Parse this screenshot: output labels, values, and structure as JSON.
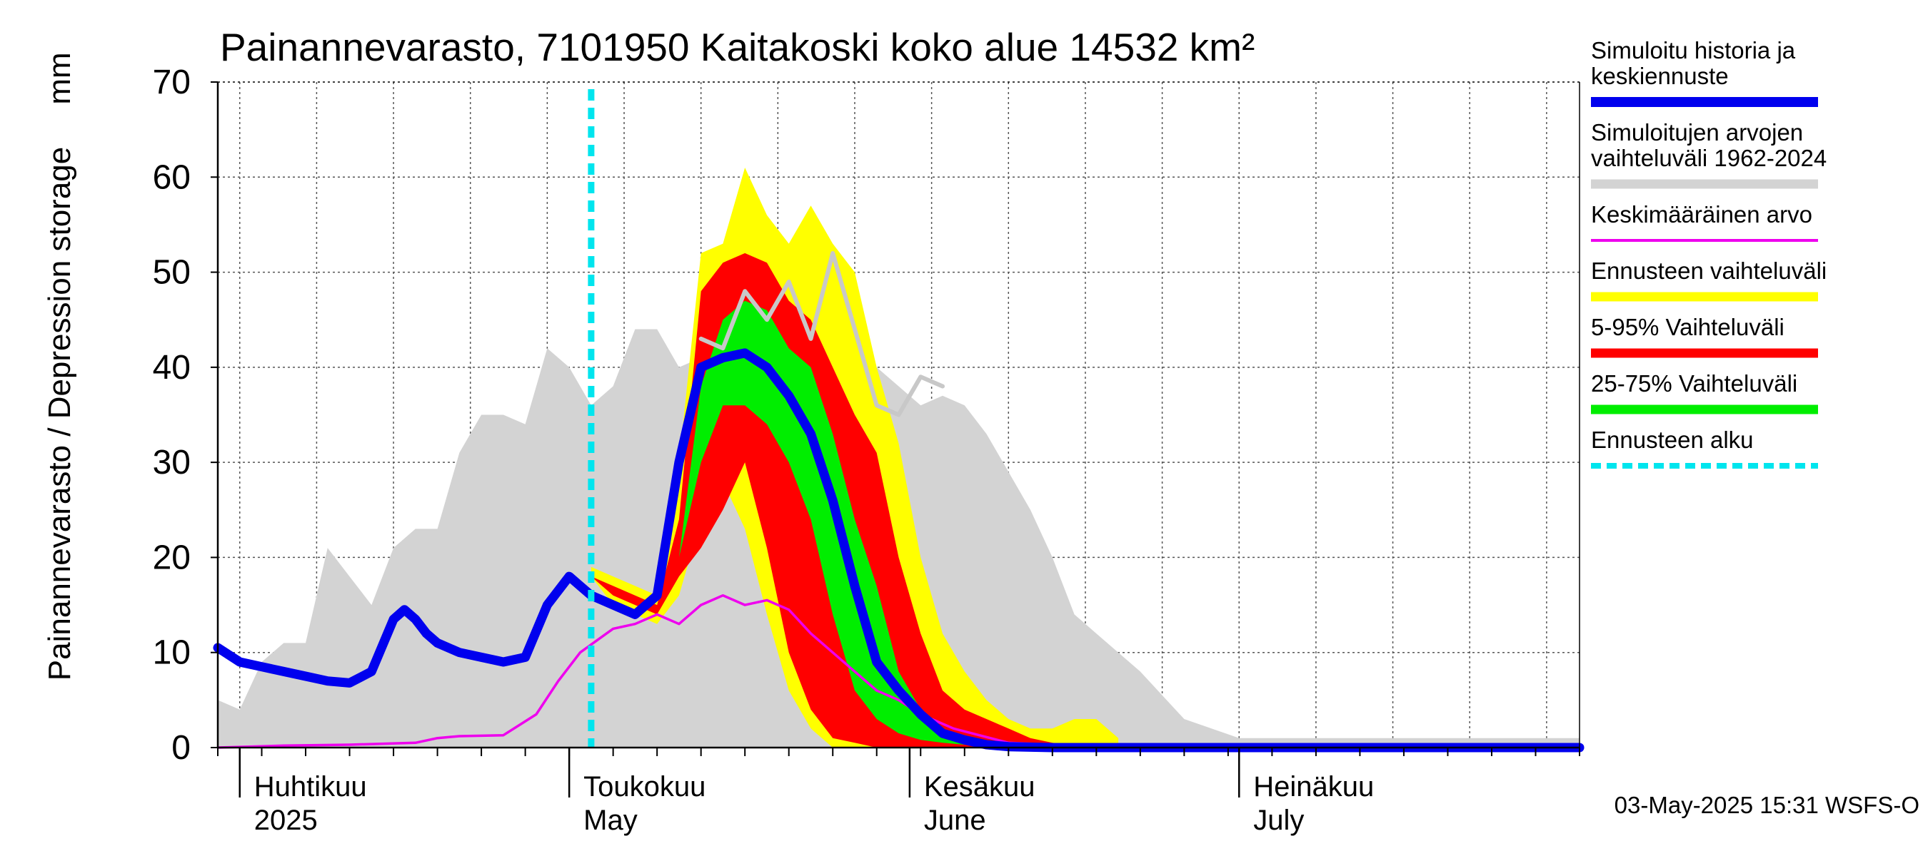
{
  "chart_data": {
    "type": "area",
    "title": "Painannevarasto, 7101950 Kaitakoski koko alue 14532 km²",
    "ylabel": "Painannevarasto / Depression storage",
    "yunit": "mm",
    "ylim": [
      0,
      70
    ],
    "yticks": [
      0,
      10,
      20,
      30,
      40,
      50,
      60,
      70
    ],
    "xlim": [
      "2025-03-30",
      "2025-08-01"
    ],
    "grid": true,
    "legend_position": "right",
    "month_labels": [
      {
        "date": "2025-04-01",
        "fi": "Huhtikuu",
        "en": "2025"
      },
      {
        "date": "2025-05-01",
        "fi": "Toukokuu",
        "en": "May"
      },
      {
        "date": "2025-06-01",
        "fi": "Kesäkuu",
        "en": "June"
      },
      {
        "date": "2025-07-01",
        "fi": "Heinäkuu",
        "en": "July"
      }
    ],
    "forecast_start": "2025-05-03",
    "footer": "03-May-2025 15:31 WSFS-O",
    "colors": {
      "history": "#0000ee",
      "range": "#d3d3d3",
      "mean": "#ee00ee",
      "forecast_range": "#ffff00",
      "p5_95": "#ff0000",
      "p25_75": "#00ee00",
      "forecast_start": "#00e5ee",
      "prev_forecast": "#c8c8c8"
    },
    "legend": [
      {
        "key": "history",
        "text": [
          "Simuloitu historia ja",
          "keskiennuste"
        ],
        "style": "thick"
      },
      {
        "key": "range",
        "text": [
          "Simuloitujen arvojen",
          "vaihteluväli 1962-2024"
        ],
        "style": "band"
      },
      {
        "key": "mean",
        "text": [
          "Keskimääräinen arvo"
        ],
        "style": "thin"
      },
      {
        "key": "forecast_range",
        "text": [
          "Ennusteen vaihteluväli"
        ],
        "style": "band"
      },
      {
        "key": "p5_95",
        "text": [
          "5-95% Vaihteluväli"
        ],
        "style": "band"
      },
      {
        "key": "p25_75",
        "text": [
          "25-75% Vaihteluväli"
        ],
        "style": "band"
      },
      {
        "key": "forecast_start",
        "text": [
          "Ennusteen alku"
        ],
        "style": "dashed"
      }
    ],
    "series": [
      {
        "key": "range",
        "kind": "band",
        "x": [
          "2025-03-30",
          "2025-04-01",
          "2025-04-03",
          "2025-04-05",
          "2025-04-07",
          "2025-04-09",
          "2025-04-11",
          "2025-04-13",
          "2025-04-15",
          "2025-04-17",
          "2025-04-19",
          "2025-04-21",
          "2025-04-23",
          "2025-04-25",
          "2025-04-27",
          "2025-04-29",
          "2025-05-01",
          "2025-05-03",
          "2025-05-05",
          "2025-05-07",
          "2025-05-09",
          "2025-05-11",
          "2025-05-13",
          "2025-05-15",
          "2025-05-17",
          "2025-05-19",
          "2025-05-21",
          "2025-05-23",
          "2025-05-25",
          "2025-05-27",
          "2025-05-29",
          "2025-05-31",
          "2025-06-02",
          "2025-06-04",
          "2025-06-06",
          "2025-06-08",
          "2025-06-10",
          "2025-06-12",
          "2025-06-14",
          "2025-06-16",
          "2025-06-18",
          "2025-06-22",
          "2025-06-26",
          "2025-07-01",
          "2025-08-01"
        ],
        "upper": [
          5,
          4,
          9,
          11,
          11,
          21,
          18,
          15,
          21,
          23,
          23,
          31,
          35,
          35,
          34,
          42,
          40,
          36,
          38,
          44,
          44,
          40,
          41,
          46,
          44,
          42,
          43,
          46,
          44,
          42,
          40,
          38,
          36,
          37,
          36,
          33,
          29,
          25,
          20,
          14,
          12,
          8,
          3,
          1,
          1
        ],
        "lower": [
          0,
          0,
          0,
          0,
          0,
          0,
          0,
          0,
          0,
          0,
          0,
          0,
          0,
          0,
          0,
          0,
          0,
          0,
          0,
          0,
          0,
          0,
          0,
          0,
          0,
          0,
          0,
          0,
          0,
          0,
          0,
          0,
          0,
          0,
          0,
          0,
          0,
          0,
          0,
          0,
          0,
          0,
          0,
          0,
          0
        ]
      },
      {
        "key": "forecast_range",
        "kind": "band",
        "x": [
          "2025-05-03",
          "2025-05-05",
          "2025-05-07",
          "2025-05-09",
          "2025-05-11",
          "2025-05-13",
          "2025-05-15",
          "2025-05-17",
          "2025-05-19",
          "2025-05-21",
          "2025-05-23",
          "2025-05-25",
          "2025-05-27",
          "2025-05-29",
          "2025-05-31",
          "2025-06-02",
          "2025-06-04",
          "2025-06-06",
          "2025-06-08",
          "2025-06-10",
          "2025-06-12",
          "2025-06-14",
          "2025-06-16",
          "2025-06-18",
          "2025-06-20"
        ],
        "upper": [
          19,
          18,
          17,
          16,
          30,
          52,
          53,
          61,
          56,
          53,
          57,
          53,
          50,
          40,
          32,
          20,
          12,
          8,
          5,
          3,
          2,
          2,
          3,
          3,
          1
        ],
        "lower": [
          18,
          15,
          14,
          13,
          16,
          24,
          28,
          23,
          14,
          6,
          2,
          0,
          0,
          0,
          0,
          0,
          0,
          0,
          0,
          0,
          0,
          0,
          0,
          0,
          0
        ]
      },
      {
        "key": "p5_95",
        "kind": "band",
        "x": [
          "2025-05-03",
          "2025-05-05",
          "2025-05-07",
          "2025-05-09",
          "2025-05-11",
          "2025-05-13",
          "2025-05-15",
          "2025-05-17",
          "2025-05-19",
          "2025-05-21",
          "2025-05-23",
          "2025-05-25",
          "2025-05-27",
          "2025-05-29",
          "2025-05-31",
          "2025-06-02",
          "2025-06-04",
          "2025-06-06",
          "2025-06-08",
          "2025-06-10",
          "2025-06-12",
          "2025-06-14",
          "2025-06-16",
          "2025-06-18"
        ],
        "upper": [
          18,
          17,
          16,
          15,
          24,
          48,
          51,
          52,
          51,
          47,
          45,
          40,
          35,
          31,
          20,
          12,
          6,
          4,
          3,
          2,
          1,
          0.5,
          0.2,
          0
        ],
        "lower": [
          18,
          16,
          15,
          14,
          18,
          21,
          25,
          30,
          21,
          10,
          4,
          1,
          0.5,
          0,
          0,
          0,
          0,
          0,
          0,
          0,
          0,
          0,
          0,
          0
        ]
      },
      {
        "key": "p25_75",
        "kind": "band",
        "x": [
          "2025-05-03",
          "2025-05-05",
          "2025-05-07",
          "2025-05-09",
          "2025-05-11",
          "2025-05-13",
          "2025-05-15",
          "2025-05-17",
          "2025-05-19",
          "2025-05-21",
          "2025-05-23",
          "2025-05-25",
          "2025-05-27",
          "2025-05-29",
          "2025-05-31",
          "2025-06-02",
          "2025-06-04",
          "2025-06-06",
          "2025-06-08",
          "2025-06-10",
          "2025-06-12",
          "2025-06-14",
          "2025-06-16",
          "2025-06-18"
        ],
        "upper": [
          18,
          16,
          15,
          14,
          20,
          38,
          45,
          47,
          46,
          42,
          40,
          33,
          24,
          17,
          8,
          4,
          2,
          1,
          0.5,
          0.2,
          0.1,
          0,
          0,
          0
        ],
        "lower": [
          18,
          16,
          15,
          14,
          20,
          30,
          36,
          36,
          34,
          30,
          24,
          14,
          6,
          3,
          1.5,
          0.8,
          0.5,
          0.3,
          0.2,
          0.1,
          0,
          0,
          0,
          0
        ]
      },
      {
        "key": "prev_forecast",
        "kind": "line",
        "x": [
          "2025-05-13",
          "2025-05-15",
          "2025-05-17",
          "2025-05-19",
          "2025-05-21",
          "2025-05-23",
          "2025-05-25",
          "2025-05-27",
          "2025-05-29",
          "2025-05-31",
          "2025-06-02",
          "2025-06-04"
        ],
        "y": [
          43,
          42,
          48,
          45,
          49,
          43,
          52,
          44,
          36,
          35,
          39,
          38
        ]
      },
      {
        "key": "mean",
        "kind": "line",
        "x": [
          "2025-03-30",
          "2025-04-05",
          "2025-04-11",
          "2025-04-17",
          "2025-04-19",
          "2025-04-21",
          "2025-04-25",
          "2025-04-28",
          "2025-04-30",
          "2025-05-02",
          "2025-05-05",
          "2025-05-07",
          "2025-05-09",
          "2025-05-11",
          "2025-05-13",
          "2025-05-15",
          "2025-05-17",
          "2025-05-19",
          "2025-05-21",
          "2025-05-23",
          "2025-05-25",
          "2025-05-27",
          "2025-05-29",
          "2025-05-31",
          "2025-06-02",
          "2025-06-05",
          "2025-06-10",
          "2025-06-20",
          "2025-08-01"
        ],
        "y": [
          0,
          0.2,
          0.3,
          0.5,
          1,
          1.2,
          1.3,
          3.5,
          7,
          10,
          12.5,
          13,
          14,
          13,
          15,
          16,
          15,
          15.5,
          14.5,
          12,
          10,
          8,
          6,
          5,
          3.5,
          2,
          0.5,
          0,
          0
        ]
      },
      {
        "key": "history",
        "kind": "line",
        "x": [
          "2025-03-30",
          "2025-04-01",
          "2025-04-03",
          "2025-04-05",
          "2025-04-07",
          "2025-04-09",
          "2025-04-11",
          "2025-04-13",
          "2025-04-15",
          "2025-04-16",
          "2025-04-17",
          "2025-04-18",
          "2025-04-19",
          "2025-04-21",
          "2025-04-23",
          "2025-04-25",
          "2025-04-27",
          "2025-04-29",
          "2025-05-01",
          "2025-05-02",
          "2025-05-03",
          "2025-05-05",
          "2025-05-07",
          "2025-05-09",
          "2025-05-11",
          "2025-05-13",
          "2025-05-15",
          "2025-05-17",
          "2025-05-19",
          "2025-05-21",
          "2025-05-23",
          "2025-05-25",
          "2025-05-27",
          "2025-05-29",
          "2025-05-31",
          "2025-06-02",
          "2025-06-04",
          "2025-06-06",
          "2025-06-08",
          "2025-06-10",
          "2025-06-14",
          "2025-06-20",
          "2025-08-01"
        ],
        "y": [
          10.5,
          9,
          8.5,
          8,
          7.5,
          7,
          6.8,
          8,
          13.5,
          14.5,
          13.5,
          12,
          11,
          10,
          9.5,
          9,
          9.5,
          15,
          18,
          17,
          16,
          15,
          14,
          16,
          30,
          40,
          41,
          41.5,
          40,
          37,
          33,
          26,
          17,
          9,
          6,
          3.5,
          1.5,
          0.8,
          0.3,
          0.1,
          0,
          0,
          0
        ]
      }
    ]
  }
}
